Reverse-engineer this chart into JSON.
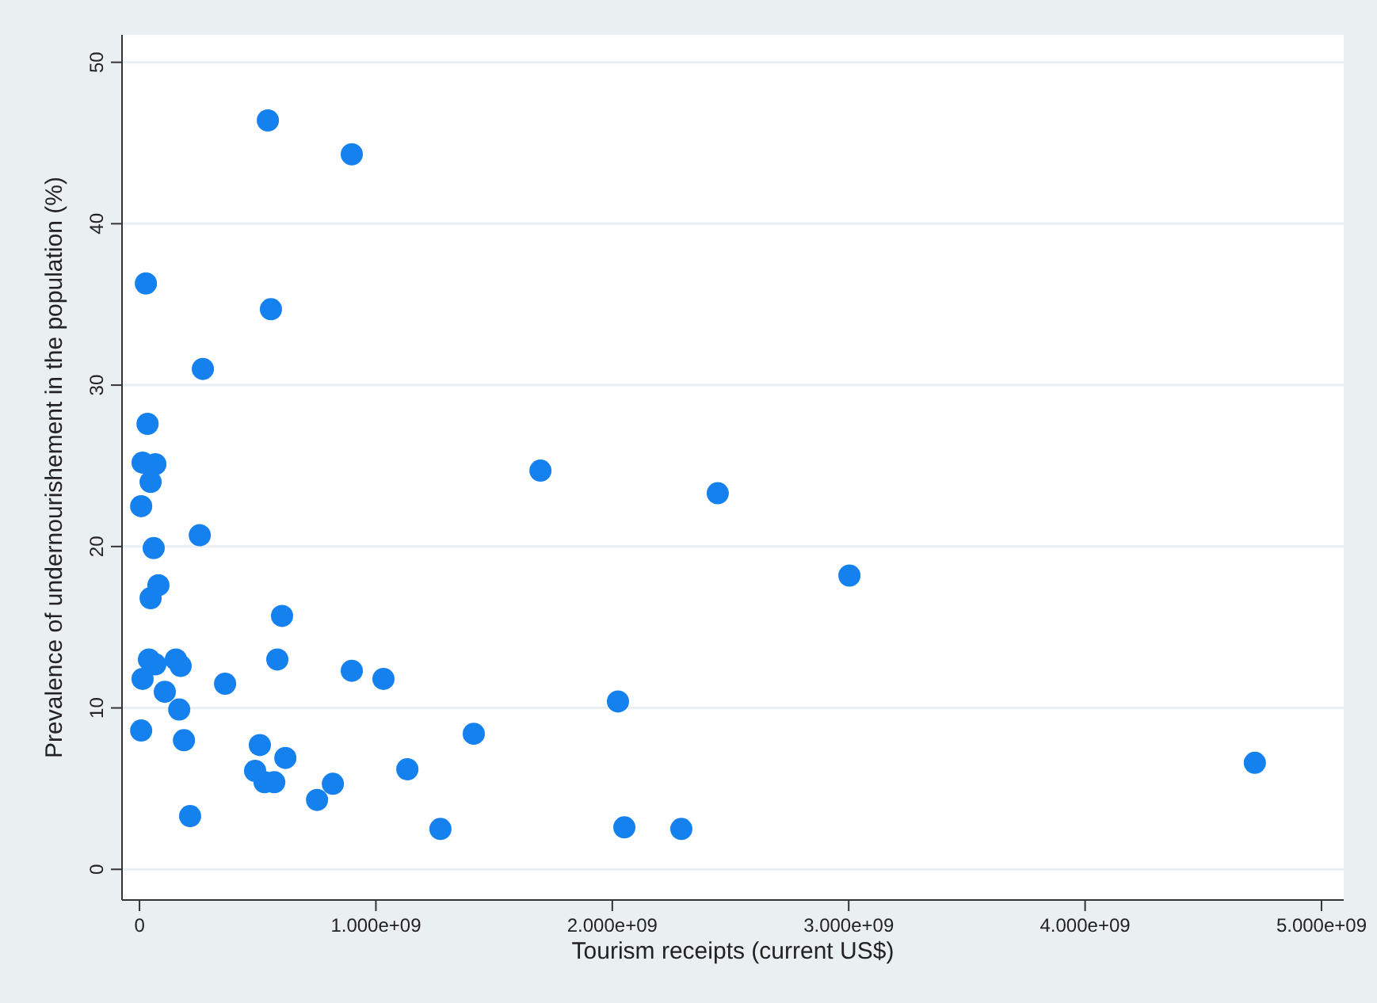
{
  "chart_data": {
    "type": "scatter",
    "xlabel": "Tourism receipts (current US$)",
    "ylabel": "Prevalence of undernourishement in the population (%)",
    "xlim": [
      -74000000,
      5094000000
    ],
    "ylim": [
      -1.9,
      51.7
    ],
    "xticks": [
      0,
      {
        "value": 1000000000,
        "label": "1.000e+09"
      },
      {
        "value": 2000000000,
        "label": "2.000e+09"
      },
      {
        "value": 3000000000,
        "label": "3.000e+09"
      },
      {
        "value": 4000000000,
        "label": "4.000e+09"
      },
      {
        "value": 5000000000,
        "label": "5.000e+09"
      }
    ],
    "yticks": [
      0,
      10,
      20,
      30,
      40,
      50
    ],
    "grid": "y",
    "marker": "circle",
    "series": [
      {
        "color": "#1581ee",
        "x": [
          543000000,
          898000000,
          27000000,
          556000000,
          268000000,
          34000000,
          13000000,
          67000000,
          47000000,
          7000000,
          60000000,
          255000000,
          80000000,
          47000000,
          603000000,
          1696000000,
          2446000000,
          3003000000,
          4718000000,
          40000000,
          67000000,
          13000000,
          107000000,
          168000000,
          7000000,
          188000000,
          214000000,
          154000000,
          174000000,
          362000000,
          583000000,
          898000000,
          1032000000,
          509000000,
          617000000,
          489000000,
          529000000,
          570000000,
          751000000,
          818000000,
          1133000000,
          1414000000,
          2024000000,
          1273000000,
          2051000000,
          2292000000
        ],
        "values": [
          46.4,
          44.3,
          36.3,
          34.7,
          31.0,
          27.6,
          25.2,
          25.1,
          24.0,
          22.5,
          19.9,
          20.7,
          17.6,
          16.8,
          15.7,
          24.7,
          23.3,
          18.2,
          6.6,
          13.0,
          12.7,
          11.8,
          11.0,
          9.9,
          8.6,
          8.0,
          3.3,
          13.0,
          12.6,
          11.5,
          13.0,
          12.3,
          11.8,
          7.7,
          6.9,
          6.1,
          5.4,
          5.4,
          4.3,
          5.3,
          6.2,
          8.4,
          10.4,
          2.5,
          2.6,
          2.5
        ]
      }
    ]
  }
}
